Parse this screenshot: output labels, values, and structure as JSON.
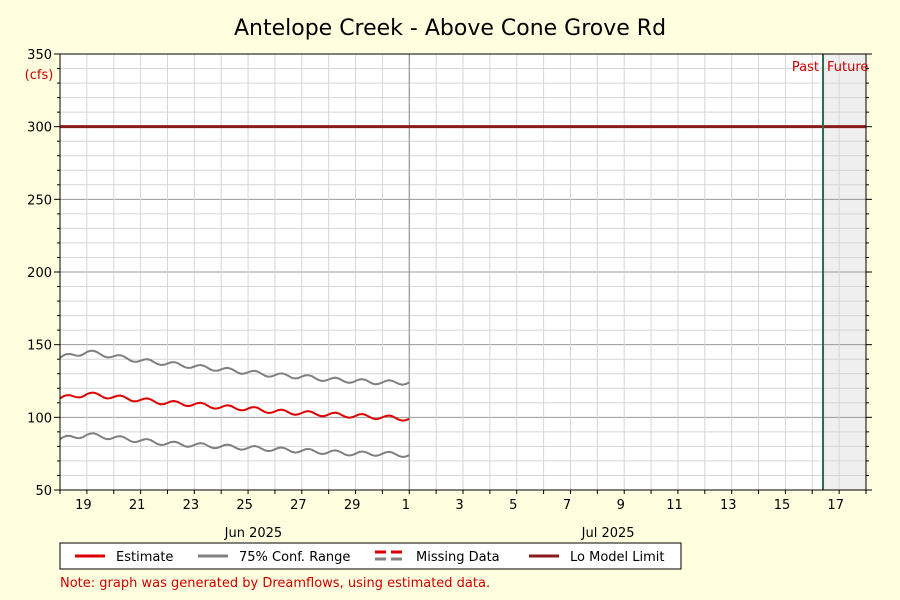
{
  "chart_data": {
    "type": "line",
    "title": "Antelope Creek - Above Cone Grove Rd",
    "unit": "(cfs)",
    "ylim": [
      50,
      350
    ],
    "y_ticks": [
      50,
      100,
      150,
      200,
      250,
      300,
      350
    ],
    "x_range_days": [
      "2025-06-18",
      "2025-07-18"
    ],
    "x_tick_labels": [
      "19",
      "21",
      "23",
      "25",
      "27",
      "29",
      "1",
      "3",
      "5",
      "7",
      "9",
      "11",
      "13",
      "15",
      "17"
    ],
    "month_labels": [
      "Jun 2025",
      "Jul 2025"
    ],
    "grid": true,
    "series": [
      {
        "name": "Estimate",
        "color": "#dd0000",
        "x": [
          "2025-06-18",
          "2025-06-19",
          "2025-06-20",
          "2025-06-21",
          "2025-06-22",
          "2025-06-23",
          "2025-06-24",
          "2025-06-25",
          "2025-06-26",
          "2025-06-27",
          "2025-06-28",
          "2025-06-29",
          "2025-06-30",
          "2025-07-01"
        ],
        "values": [
          113,
          116,
          114,
          112,
          110,
          109,
          107,
          106,
          104,
          103,
          102,
          101,
          100,
          99
        ]
      },
      {
        "name": "75% Conf. Range",
        "color": "#808080",
        "x": [
          "2025-06-18",
          "2025-06-19",
          "2025-06-20",
          "2025-06-21",
          "2025-06-22",
          "2025-06-23",
          "2025-06-24",
          "2025-06-25",
          "2025-06-26",
          "2025-06-27",
          "2025-06-28",
          "2025-06-29",
          "2025-06-30",
          "2025-07-01"
        ],
        "values": [
          141,
          145,
          142,
          139,
          137,
          135,
          133,
          131,
          129,
          128,
          126,
          125,
          124,
          124
        ]
      },
      {
        "name": "75% Conf. Range",
        "color": "#808080",
        "x": [
          "2025-06-18",
          "2025-06-19",
          "2025-06-20",
          "2025-06-21",
          "2025-06-22",
          "2025-06-23",
          "2025-06-24",
          "2025-06-25",
          "2025-06-26",
          "2025-06-27",
          "2025-06-28",
          "2025-06-29",
          "2025-06-30",
          "2025-07-01"
        ],
        "values": [
          85,
          88,
          86,
          84,
          82,
          81,
          80,
          79,
          78,
          77,
          76,
          75,
          75,
          74
        ]
      }
    ],
    "lo_model_limit": 300,
    "marker_labels": {
      "past": "Past",
      "future": "Future"
    },
    "legend": {
      "placement": "bottom",
      "items": [
        {
          "label": "Estimate",
          "color": "#dd0000",
          "style": "solid"
        },
        {
          "label": "75% Conf. Range",
          "color": "#808080",
          "style": "solid"
        },
        {
          "label": "Missing Data",
          "color": "#dd0000",
          "color2": "#808080",
          "style": "dashed"
        },
        {
          "label": "Lo Model Limit",
          "color": "#8b1a1a",
          "style": "solid"
        }
      ]
    },
    "note": "Note: graph was generated by Dreamflows, using estimated data."
  }
}
